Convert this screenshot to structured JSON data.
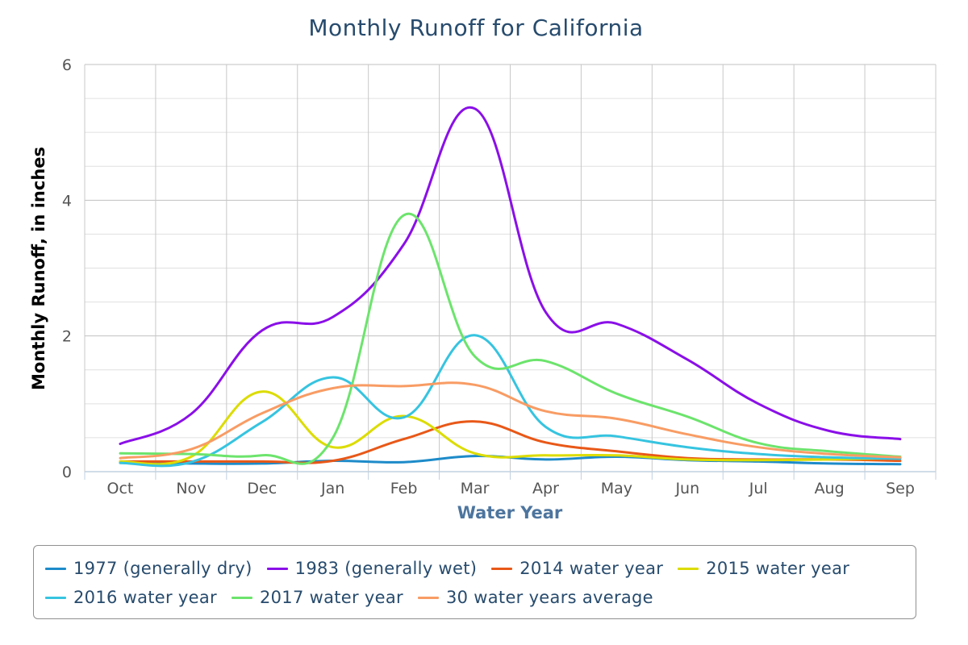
{
  "chart_data": {
    "type": "line",
    "title": "Monthly Runoff for California",
    "xlabel": "Water Year",
    "ylabel": "Monthly Runoff, in inches",
    "categories": [
      "Oct",
      "Nov",
      "Dec",
      "Jan",
      "Feb",
      "Mar",
      "Apr",
      "May",
      "Jun",
      "Jul",
      "Aug",
      "Sep"
    ],
    "ylim": [
      0,
      6
    ],
    "yticks": [
      "0",
      "2",
      "4",
      "6"
    ],
    "grid": true,
    "legend_position": "bottom",
    "series": [
      {
        "name": "1977 (generally dry)",
        "color": "#1d8bc9",
        "values": [
          0.13,
          0.12,
          0.12,
          0.16,
          0.14,
          0.23,
          0.18,
          0.22,
          0.17,
          0.15,
          0.12,
          0.11
        ]
      },
      {
        "name": "1983 (generally wet)",
        "color": "#8a0fe8",
        "values": [
          0.41,
          0.85,
          2.08,
          2.28,
          3.35,
          5.35,
          2.35,
          2.18,
          1.65,
          1.0,
          0.6,
          0.48
        ]
      },
      {
        "name": "2014 water year",
        "color": "#e85818",
        "values": [
          0.15,
          0.15,
          0.15,
          0.16,
          0.48,
          0.74,
          0.43,
          0.3,
          0.2,
          0.18,
          0.18,
          0.16
        ]
      },
      {
        "name": "2015 water year",
        "color": "#dcdc00",
        "values": [
          0.15,
          0.22,
          1.18,
          0.36,
          0.82,
          0.27,
          0.24,
          0.24,
          0.18,
          0.17,
          0.18,
          0.2
        ]
      },
      {
        "name": "2016 water year",
        "color": "#36c4e0",
        "values": [
          0.13,
          0.14,
          0.73,
          1.39,
          0.8,
          2.01,
          0.66,
          0.52,
          0.36,
          0.26,
          0.21,
          0.19
        ]
      },
      {
        "name": "2017 water year",
        "color": "#6ce46c",
        "values": [
          0.27,
          0.26,
          0.24,
          0.5,
          3.78,
          1.7,
          1.63,
          1.15,
          0.81,
          0.42,
          0.3,
          0.22
        ]
      },
      {
        "name": "30 water years average",
        "color": "#f89c64",
        "values": [
          0.2,
          0.33,
          0.86,
          1.23,
          1.26,
          1.28,
          0.89,
          0.78,
          0.55,
          0.36,
          0.26,
          0.21
        ]
      }
    ]
  }
}
